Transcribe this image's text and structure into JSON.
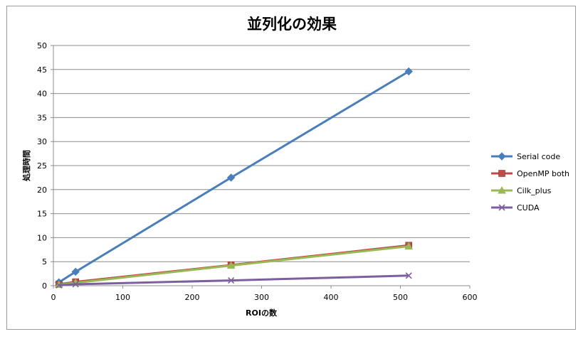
{
  "chart_data": {
    "type": "line",
    "title": "並列化の効果",
    "xlabel": "ROIの数",
    "ylabel": "処理時間",
    "xlim": [
      0,
      600
    ],
    "ylim": [
      0,
      50
    ],
    "xticks": [
      0,
      100,
      200,
      300,
      400,
      500,
      600
    ],
    "yticks": [
      0,
      5,
      10,
      15,
      20,
      25,
      30,
      35,
      40,
      45,
      50
    ],
    "grid": "horizontal",
    "legend_position": "right",
    "x": [
      8,
      32,
      256,
      512
    ],
    "series": [
      {
        "name": "Serial code",
        "color": "#4a7ebb",
        "marker": "diamond",
        "values": [
          0.7,
          2.9,
          22.5,
          44.6
        ]
      },
      {
        "name": "OpenMP both",
        "color": "#be4b48",
        "marker": "square",
        "values": [
          0.3,
          0.8,
          4.3,
          8.4
        ]
      },
      {
        "name": "Cilk_plus",
        "color": "#98b954",
        "marker": "triangle",
        "values": [
          0.2,
          0.6,
          4.2,
          8.2
        ]
      },
      {
        "name": "CUDA",
        "color": "#7d5fa0",
        "marker": "x",
        "values": [
          0.1,
          0.3,
          1.1,
          2.1
        ]
      }
    ]
  }
}
